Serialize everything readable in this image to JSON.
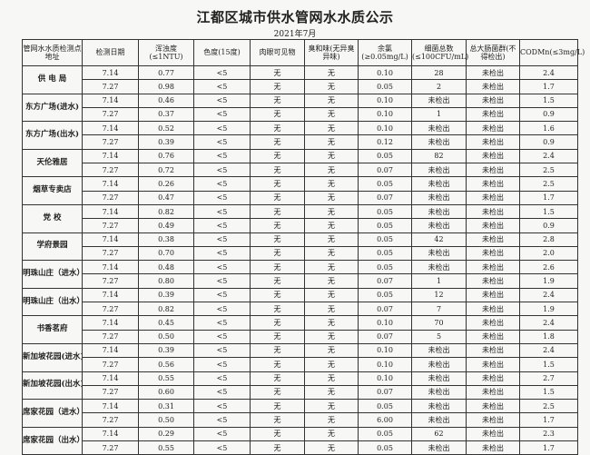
{
  "title": "江都区城市供水管网水水质公示",
  "subtitle": "2021年7月",
  "headers": [
    "管网水水质检测点地址",
    "检测日期",
    "浑浊度(≤1NTU)",
    "色度(15度)",
    "肉眼可见物",
    "臭和味(无异臭异味)",
    "余氯(≥0.05mg/L)",
    "细菌总数(≤100CFU/mL)",
    "总大肠菌群(不得检出)",
    "CODMn(≤3mg/L)"
  ],
  "sites": [
    {
      "name": "供 电 局",
      "rows": [
        [
          "7.14",
          "0.77",
          "<5",
          "无",
          "无",
          "0.10",
          "28",
          "未检出",
          "2.4"
        ],
        [
          "7.27",
          "0.98",
          "<5",
          "无",
          "无",
          "0.05",
          "2",
          "未检出",
          "1.7"
        ]
      ]
    },
    {
      "name": "东方广场(进水)",
      "rows": [
        [
          "7.14",
          "0.46",
          "<5",
          "无",
          "无",
          "0.10",
          "未检出",
          "未检出",
          "1.5"
        ],
        [
          "7.27",
          "0.37",
          "<5",
          "无",
          "无",
          "0.10",
          "1",
          "未检出",
          "0.9"
        ]
      ]
    },
    {
      "name": "东方广场(出水)",
      "rows": [
        [
          "7.14",
          "0.52",
          "<5",
          "无",
          "无",
          "0.10",
          "未检出",
          "未检出",
          "1.6"
        ],
        [
          "7.27",
          "0.39",
          "<5",
          "无",
          "无",
          "0.12",
          "未检出",
          "未检出",
          "0.9"
        ]
      ]
    },
    {
      "name": "天伦雅居",
      "rows": [
        [
          "7.14",
          "0.76",
          "<5",
          "无",
          "无",
          "0.05",
          "82",
          "未检出",
          "2.4"
        ],
        [
          "7.27",
          "0.72",
          "<5",
          "无",
          "无",
          "0.07",
          "未检出",
          "未检出",
          "2.5"
        ]
      ]
    },
    {
      "name": "烟草专卖店",
      "rows": [
        [
          "7.14",
          "0.26",
          "<5",
          "无",
          "无",
          "0.05",
          "未检出",
          "未检出",
          "2.5"
        ],
        [
          "7.27",
          "0.47",
          "<5",
          "无",
          "无",
          "0.07",
          "未检出",
          "未检出",
          "1.7"
        ]
      ]
    },
    {
      "name": "党 校",
      "rows": [
        [
          "7.14",
          "0.82",
          "<5",
          "无",
          "无",
          "0.05",
          "未检出",
          "未检出",
          "1.5"
        ],
        [
          "7.27",
          "0.49",
          "<5",
          "无",
          "无",
          "0.05",
          "未检出",
          "未检出",
          "0.9"
        ]
      ]
    },
    {
      "name": "学府景园",
      "rows": [
        [
          "7.14",
          "0.38",
          "<5",
          "无",
          "无",
          "0.05",
          "42",
          "未检出",
          "2.8"
        ],
        [
          "7.27",
          "0.70",
          "<5",
          "无",
          "无",
          "0.05",
          "未检出",
          "未检出",
          "2.0"
        ]
      ]
    },
    {
      "name": "明珠山庄（进水）",
      "rows": [
        [
          "7.14",
          "0.48",
          "<5",
          "无",
          "无",
          "0.05",
          "未检出",
          "未检出",
          "2.6"
        ],
        [
          "7.27",
          "0.80",
          "<5",
          "无",
          "无",
          "0.07",
          "1",
          "未检出",
          "1.9"
        ]
      ]
    },
    {
      "name": "明珠山庄（出水）",
      "rows": [
        [
          "7.14",
          "0.39",
          "<5",
          "无",
          "无",
          "0.05",
          "12",
          "未检出",
          "2.4"
        ],
        [
          "7.27",
          "0.82",
          "<5",
          "无",
          "无",
          "0.07",
          "7",
          "未检出",
          "1.9"
        ]
      ]
    },
    {
      "name": "书香茗府",
      "rows": [
        [
          "7.14",
          "0.45",
          "<5",
          "无",
          "无",
          "0.10",
          "70",
          "未检出",
          "2.4"
        ],
        [
          "7.27",
          "0.50",
          "<5",
          "无",
          "无",
          "0.07",
          "5",
          "未检出",
          "1.8"
        ]
      ]
    },
    {
      "name": "新加坡花园(进水)",
      "rows": [
        [
          "7.14",
          "0.39",
          "<5",
          "无",
          "无",
          "0.10",
          "未检出",
          "未检出",
          "2.4"
        ],
        [
          "7.27",
          "0.56",
          "<5",
          "无",
          "无",
          "0.10",
          "未检出",
          "未检出",
          "1.5"
        ]
      ]
    },
    {
      "name": "新加坡花园(出水)",
      "rows": [
        [
          "7.14",
          "0.55",
          "<5",
          "无",
          "无",
          "0.10",
          "未检出",
          "未检出",
          "2.7"
        ],
        [
          "7.27",
          "0.60",
          "<5",
          "无",
          "无",
          "0.07",
          "未检出",
          "未检出",
          "1.5"
        ]
      ]
    },
    {
      "name": "席家花园（进水）",
      "rows": [
        [
          "7.14",
          "0.31",
          "<5",
          "无",
          "无",
          "0.05",
          "未检出",
          "未检出",
          "2.5"
        ],
        [
          "7.27",
          "0.50",
          "<5",
          "无",
          "无",
          "6.00",
          "未检出",
          "未检出",
          "1.7"
        ]
      ]
    },
    {
      "name": "席家花园（出水）",
      "rows": [
        [
          "7.14",
          "0.29",
          "<5",
          "无",
          "无",
          "0.05",
          "62",
          "未检出",
          "2.3"
        ],
        [
          "7.27",
          "0.55",
          "<5",
          "无",
          "无",
          "0.05",
          "未检出",
          "未检出",
          "1.7"
        ]
      ]
    }
  ]
}
